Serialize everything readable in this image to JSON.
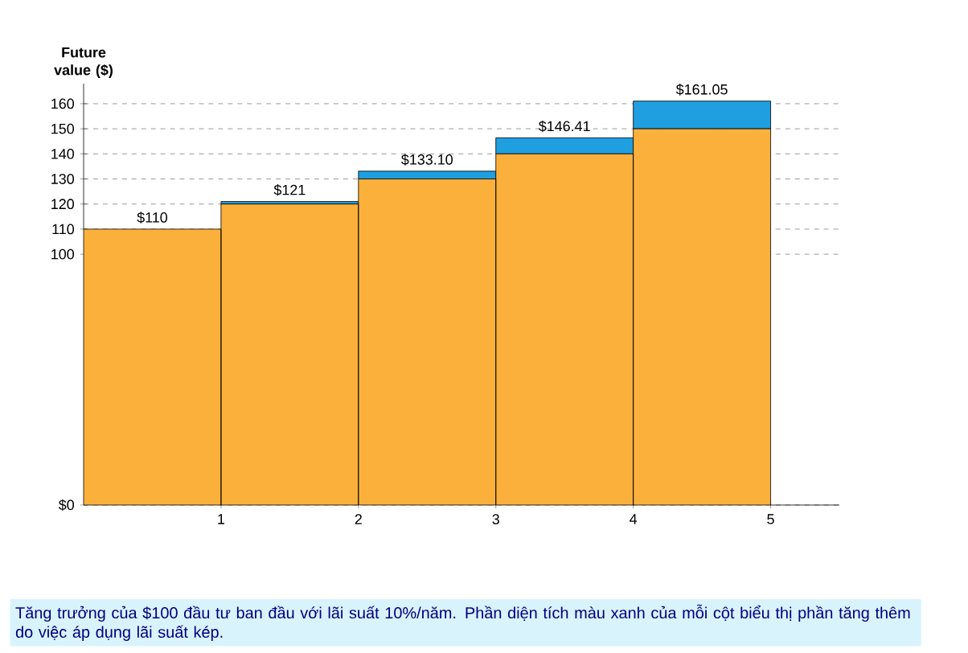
{
  "chart_data": {
    "type": "bar",
    "stacked": true,
    "x": [
      0.5,
      1.5,
      2.5,
      3.5,
      4.5
    ],
    "series": [
      {
        "color": "#fbb03b",
        "values": [
          110,
          120,
          130,
          140,
          150
        ]
      },
      {
        "color": "#1f9fe0",
        "values": [
          0,
          1,
          3.1,
          6.41,
          11.05
        ]
      }
    ],
    "totals": [
      "$110",
      "$121",
      "$133.10",
      "$146.41",
      "$161.05"
    ],
    "ylabel": "Future value ($)",
    "xlim": [
      0,
      5.5
    ],
    "xticks": [
      1,
      2,
      3,
      4,
      5
    ],
    "ylim": [
      0,
      168
    ],
    "yticks": [
      {
        "value": 0,
        "label": "$0"
      },
      100,
      110,
      120,
      130,
      140,
      150,
      160
    ],
    "grid": "y",
    "annotations": [
      "Tăng trưởng của $100 đầu tư ban đầu với lãi suất 10%/năm. Phần diện tích màu xanh của mỗi cột biểu thị phần tăng thêm do việc áp dụng lãi suất kép."
    ]
  }
}
